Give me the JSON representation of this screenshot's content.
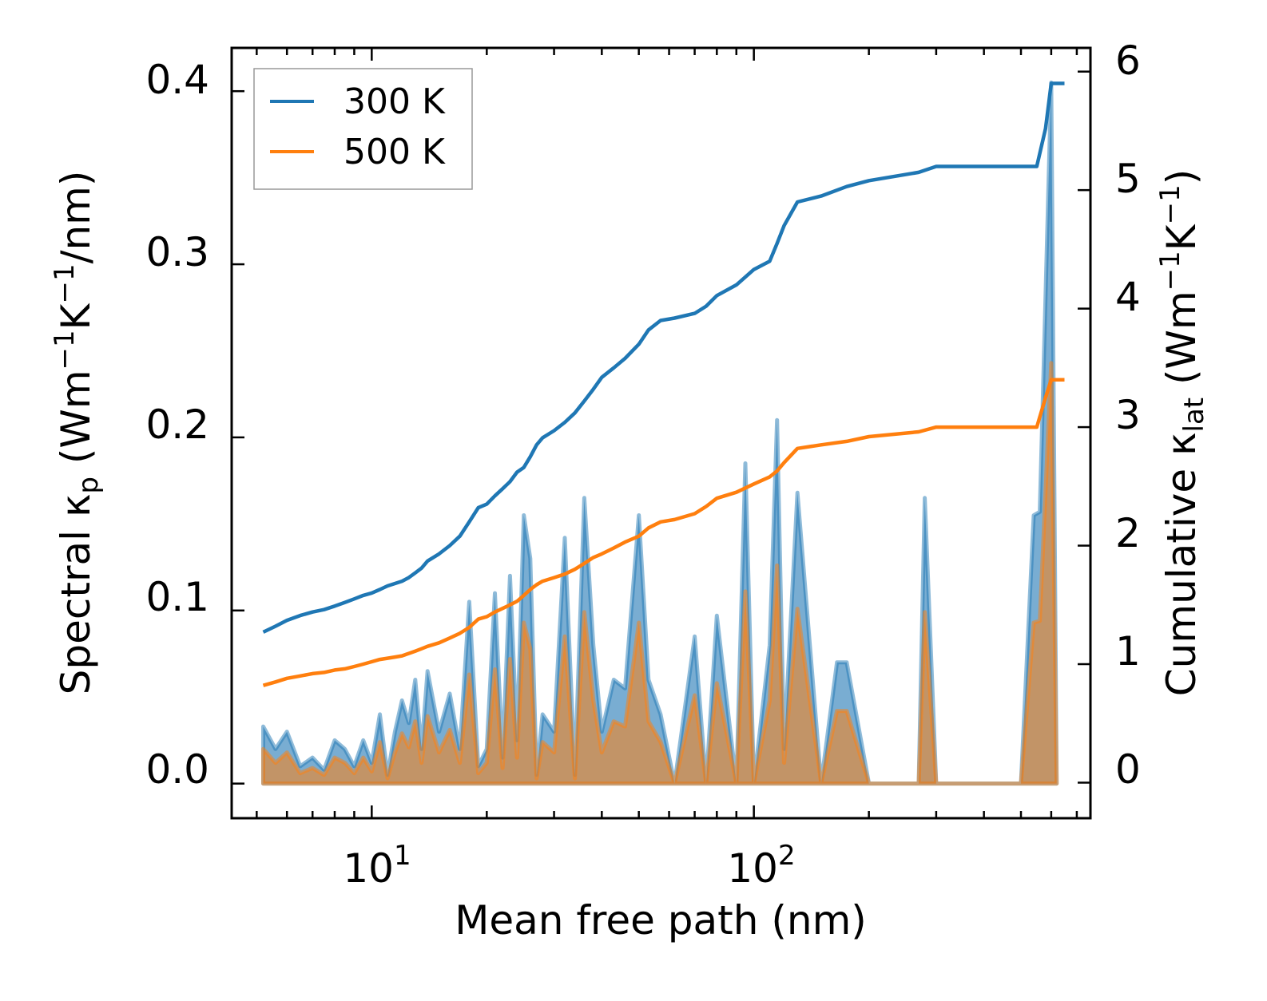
{
  "chart_data": {
    "type": "line",
    "xlabel": "Mean free path (nm)",
    "xscale": "log",
    "xlim": [
      4.3,
      760
    ],
    "xticks": [
      {
        "value": 10,
        "base": "10",
        "exp": "1"
      },
      {
        "value": 100,
        "base": "10",
        "exp": "2"
      }
    ],
    "y_left": {
      "label_main": "Spectral κ",
      "label_sub": "p",
      "label_unit_open": " (Wm",
      "label_sup1": "−1",
      "label_mid": "K",
      "label_sup2": "−1",
      "label_tail": "/nm)",
      "ylim": [
        -0.02,
        0.425
      ],
      "ticks": [
        "0.0",
        "0.1",
        "0.2",
        "0.3",
        "0.4"
      ]
    },
    "y_right": {
      "label_main": "Cumulative κ",
      "label_sub": "lat",
      "label_unit_open": " (Wm",
      "label_sup1": "−1",
      "label_mid": "K",
      "label_sup2": "−1",
      "label_tail": ")",
      "ylim": [
        -0.3,
        6.2
      ],
      "ticks": [
        "0",
        "1",
        "2",
        "3",
        "4",
        "5",
        "6"
      ]
    },
    "legend": {
      "position": "upper-left",
      "entries": [
        {
          "name": "300 K",
          "color": "#1f77b4"
        },
        {
          "name": "500 K",
          "color": "#ff7f0e"
        }
      ]
    },
    "series": [
      {
        "name": "300 K",
        "color": "#1f77b4",
        "cumulative": [
          [
            5.2,
            1.27
          ],
          [
            5.6,
            1.32
          ],
          [
            6.0,
            1.37
          ],
          [
            6.5,
            1.41
          ],
          [
            7.0,
            1.44
          ],
          [
            7.5,
            1.46
          ],
          [
            8.0,
            1.49
          ],
          [
            8.5,
            1.52
          ],
          [
            9.0,
            1.55
          ],
          [
            9.5,
            1.58
          ],
          [
            10.0,
            1.6
          ],
          [
            10.5,
            1.63
          ],
          [
            11.0,
            1.66
          ],
          [
            11.5,
            1.68
          ],
          [
            12.0,
            1.7
          ],
          [
            12.5,
            1.73
          ],
          [
            13.0,
            1.77
          ],
          [
            13.5,
            1.81
          ],
          [
            14.0,
            1.87
          ],
          [
            15.0,
            1.93
          ],
          [
            16.0,
            2.0
          ],
          [
            17.0,
            2.08
          ],
          [
            18.0,
            2.2
          ],
          [
            19.0,
            2.32
          ],
          [
            20.0,
            2.35
          ],
          [
            21.0,
            2.42
          ],
          [
            22.0,
            2.48
          ],
          [
            23.0,
            2.54
          ],
          [
            24.0,
            2.62
          ],
          [
            25.0,
            2.66
          ],
          [
            26.0,
            2.75
          ],
          [
            27.0,
            2.85
          ],
          [
            28.0,
            2.91
          ],
          [
            30.0,
            2.97
          ],
          [
            32.0,
            3.04
          ],
          [
            34.0,
            3.12
          ],
          [
            36.0,
            3.22
          ],
          [
            38.0,
            3.32
          ],
          [
            40.0,
            3.42
          ],
          [
            43.0,
            3.5
          ],
          [
            46.0,
            3.58
          ],
          [
            50.0,
            3.7
          ],
          [
            53.0,
            3.82
          ],
          [
            57.0,
            3.9
          ],
          [
            62.0,
            3.92
          ],
          [
            70.0,
            3.96
          ],
          [
            75.0,
            4.02
          ],
          [
            80.0,
            4.11
          ],
          [
            90.0,
            4.2
          ],
          [
            100.0,
            4.33
          ],
          [
            110.0,
            4.4
          ],
          [
            115.0,
            4.55
          ],
          [
            120.0,
            4.7
          ],
          [
            130.0,
            4.9
          ],
          [
            150.0,
            4.95
          ],
          [
            175.0,
            5.03
          ],
          [
            200.0,
            5.08
          ],
          [
            270.0,
            5.15
          ],
          [
            300.0,
            5.2
          ],
          [
            400.0,
            5.2
          ],
          [
            550.0,
            5.2
          ],
          [
            580.0,
            5.52
          ],
          [
            600.0,
            5.9
          ],
          [
            650.0,
            5.9
          ]
        ],
        "spectral": [
          [
            5.2,
            0.033
          ],
          [
            5.6,
            0.02
          ],
          [
            6.0,
            0.03
          ],
          [
            6.5,
            0.01
          ],
          [
            7.0,
            0.015
          ],
          [
            7.5,
            0.008
          ],
          [
            8.0,
            0.025
          ],
          [
            8.5,
            0.02
          ],
          [
            9.0,
            0.01
          ],
          [
            9.5,
            0.025
          ],
          [
            10.0,
            0.012
          ],
          [
            10.5,
            0.04
          ],
          [
            11.0,
            0.005
          ],
          [
            11.5,
            0.03
          ],
          [
            12.0,
            0.048
          ],
          [
            12.5,
            0.035
          ],
          [
            13.0,
            0.06
          ],
          [
            13.5,
            0.02
          ],
          [
            14.0,
            0.065
          ],
          [
            15.0,
            0.03
          ],
          [
            16.0,
            0.052
          ],
          [
            17.0,
            0.02
          ],
          [
            18.0,
            0.105
          ],
          [
            19.0,
            0.01
          ],
          [
            20.0,
            0.02
          ],
          [
            21.0,
            0.11
          ],
          [
            22.0,
            0.015
          ],
          [
            23.0,
            0.12
          ],
          [
            24.0,
            0.025
          ],
          [
            25.0,
            0.155
          ],
          [
            26.0,
            0.13
          ],
          [
            27.0,
            0.005
          ],
          [
            28.0,
            0.04
          ],
          [
            30.0,
            0.03
          ],
          [
            32.0,
            0.142
          ],
          [
            34.0,
            0.005
          ],
          [
            36.0,
            0.165
          ],
          [
            38.0,
            0.08
          ],
          [
            40.0,
            0.03
          ],
          [
            43.0,
            0.06
          ],
          [
            46.0,
            0.055
          ],
          [
            50.0,
            0.155
          ],
          [
            53.0,
            0.06
          ],
          [
            57.0,
            0.04
          ],
          [
            62.0,
            0.0
          ],
          [
            70.0,
            0.085
          ],
          [
            75.0,
            0.0
          ],
          [
            80.0,
            0.097
          ],
          [
            90.0,
            0.0
          ],
          [
            95.0,
            0.185
          ],
          [
            100.0,
            0.0
          ],
          [
            110.0,
            0.08
          ],
          [
            115.0,
            0.21
          ],
          [
            120.0,
            0.02
          ],
          [
            130.0,
            0.168
          ],
          [
            150.0,
            0.0
          ],
          [
            165.0,
            0.07
          ],
          [
            175.0,
            0.07
          ],
          [
            200.0,
            0.0
          ],
          [
            270.0,
            0.0
          ],
          [
            280.0,
            0.165
          ],
          [
            300.0,
            0.0
          ],
          [
            500.0,
            0.0
          ],
          [
            540.0,
            0.155
          ],
          [
            560.0,
            0.157
          ],
          [
            600.0,
            0.405
          ],
          [
            620.0,
            0.0
          ]
        ]
      },
      {
        "name": "500 K",
        "color": "#ff7f0e",
        "cumulative": [
          [
            5.2,
            0.82
          ],
          [
            5.6,
            0.85
          ],
          [
            6.0,
            0.88
          ],
          [
            6.5,
            0.9
          ],
          [
            7.0,
            0.92
          ],
          [
            7.5,
            0.93
          ],
          [
            8.0,
            0.95
          ],
          [
            8.5,
            0.96
          ],
          [
            9.0,
            0.98
          ],
          [
            9.5,
            1.0
          ],
          [
            10.0,
            1.02
          ],
          [
            10.5,
            1.04
          ],
          [
            11.0,
            1.05
          ],
          [
            11.5,
            1.06
          ],
          [
            12.0,
            1.07
          ],
          [
            12.5,
            1.09
          ],
          [
            13.0,
            1.11
          ],
          [
            13.5,
            1.13
          ],
          [
            14.0,
            1.15
          ],
          [
            15.0,
            1.18
          ],
          [
            16.0,
            1.22
          ],
          [
            17.0,
            1.26
          ],
          [
            18.0,
            1.31
          ],
          [
            19.0,
            1.38
          ],
          [
            20.0,
            1.4
          ],
          [
            21.0,
            1.44
          ],
          [
            22.0,
            1.47
          ],
          [
            23.0,
            1.5
          ],
          [
            24.0,
            1.53
          ],
          [
            25.0,
            1.58
          ],
          [
            26.0,
            1.63
          ],
          [
            27.0,
            1.67
          ],
          [
            28.0,
            1.7
          ],
          [
            30.0,
            1.73
          ],
          [
            32.0,
            1.76
          ],
          [
            34.0,
            1.8
          ],
          [
            36.0,
            1.85
          ],
          [
            38.0,
            1.9
          ],
          [
            40.0,
            1.93
          ],
          [
            43.0,
            1.98
          ],
          [
            46.0,
            2.03
          ],
          [
            50.0,
            2.08
          ],
          [
            53.0,
            2.15
          ],
          [
            57.0,
            2.2
          ],
          [
            62.0,
            2.22
          ],
          [
            70.0,
            2.27
          ],
          [
            75.0,
            2.33
          ],
          [
            80.0,
            2.4
          ],
          [
            90.0,
            2.45
          ],
          [
            100.0,
            2.52
          ],
          [
            110.0,
            2.58
          ],
          [
            115.0,
            2.63
          ],
          [
            120.0,
            2.7
          ],
          [
            130.0,
            2.82
          ],
          [
            150.0,
            2.85
          ],
          [
            175.0,
            2.88
          ],
          [
            200.0,
            2.92
          ],
          [
            270.0,
            2.96
          ],
          [
            300.0,
            3.0
          ],
          [
            400.0,
            3.0
          ],
          [
            550.0,
            3.0
          ],
          [
            580.0,
            3.25
          ],
          [
            600.0,
            3.4
          ],
          [
            650.0,
            3.4
          ]
        ],
        "spectral": [
          [
            5.2,
            0.02
          ],
          [
            5.6,
            0.012
          ],
          [
            6.0,
            0.018
          ],
          [
            6.5,
            0.006
          ],
          [
            7.0,
            0.009
          ],
          [
            7.5,
            0.005
          ],
          [
            8.0,
            0.015
          ],
          [
            8.5,
            0.012
          ],
          [
            9.0,
            0.006
          ],
          [
            9.5,
            0.015
          ],
          [
            10.0,
            0.007
          ],
          [
            10.5,
            0.024
          ],
          [
            11.0,
            0.003
          ],
          [
            11.5,
            0.018
          ],
          [
            12.0,
            0.029
          ],
          [
            12.5,
            0.021
          ],
          [
            13.0,
            0.036
          ],
          [
            13.5,
            0.012
          ],
          [
            14.0,
            0.039
          ],
          [
            15.0,
            0.018
          ],
          [
            16.0,
            0.031
          ],
          [
            17.0,
            0.012
          ],
          [
            18.0,
            0.063
          ],
          [
            19.0,
            0.006
          ],
          [
            20.0,
            0.012
          ],
          [
            21.0,
            0.066
          ],
          [
            22.0,
            0.009
          ],
          [
            23.0,
            0.072
          ],
          [
            24.0,
            0.015
          ],
          [
            25.0,
            0.093
          ],
          [
            26.0,
            0.078
          ],
          [
            27.0,
            0.003
          ],
          [
            28.0,
            0.024
          ],
          [
            30.0,
            0.018
          ],
          [
            32.0,
            0.085
          ],
          [
            34.0,
            0.003
          ],
          [
            36.0,
            0.099
          ],
          [
            38.0,
            0.048
          ],
          [
            40.0,
            0.018
          ],
          [
            43.0,
            0.036
          ],
          [
            46.0,
            0.033
          ],
          [
            50.0,
            0.093
          ],
          [
            53.0,
            0.036
          ],
          [
            57.0,
            0.024
          ],
          [
            62.0,
            0.0
          ],
          [
            70.0,
            0.051
          ],
          [
            75.0,
            0.0
          ],
          [
            80.0,
            0.058
          ],
          [
            90.0,
            0.0
          ],
          [
            95.0,
            0.111
          ],
          [
            100.0,
            0.0
          ],
          [
            110.0,
            0.048
          ],
          [
            115.0,
            0.126
          ],
          [
            120.0,
            0.012
          ],
          [
            130.0,
            0.101
          ],
          [
            150.0,
            0.0
          ],
          [
            165.0,
            0.042
          ],
          [
            175.0,
            0.042
          ],
          [
            200.0,
            0.0
          ],
          [
            270.0,
            0.0
          ],
          [
            280.0,
            0.099
          ],
          [
            300.0,
            0.0
          ],
          [
            500.0,
            0.0
          ],
          [
            540.0,
            0.093
          ],
          [
            560.0,
            0.094
          ],
          [
            600.0,
            0.243
          ],
          [
            620.0,
            0.0
          ]
        ]
      }
    ]
  }
}
